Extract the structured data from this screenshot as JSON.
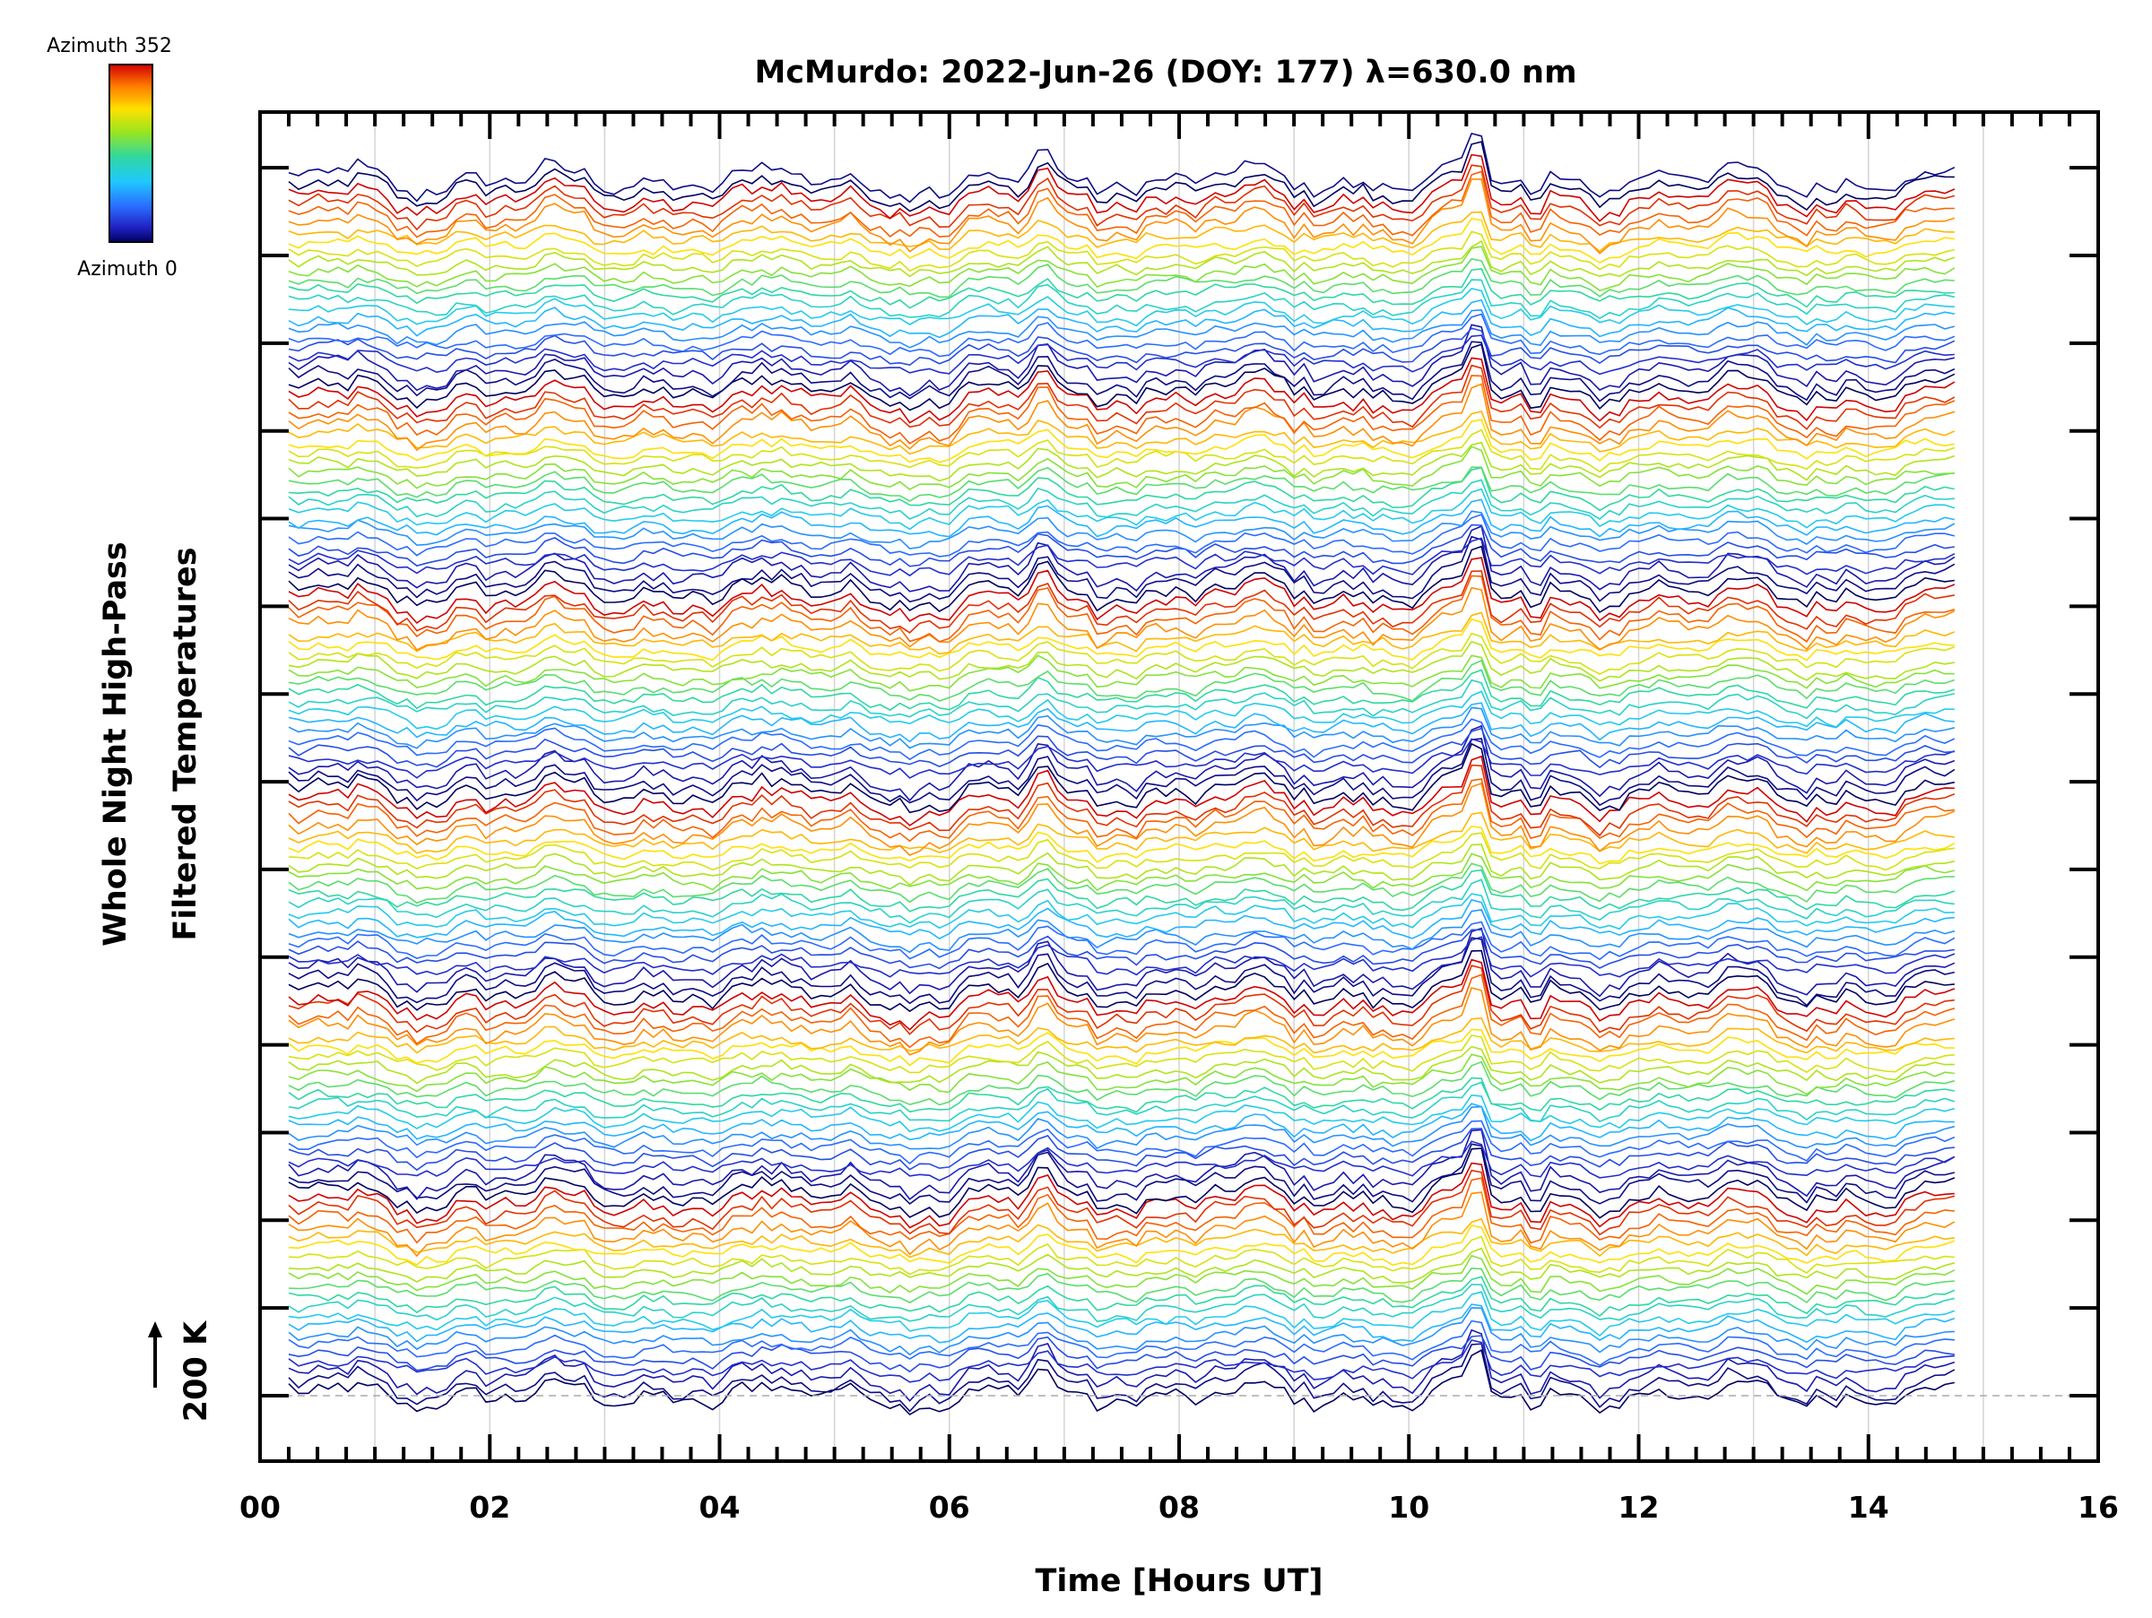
{
  "chart_data": {
    "type": "line",
    "title": "McMurdo: 2022-Jun-26 (DOY: 177) λ=630.0 nm",
    "xlabel": "Time [Hours UT]",
    "ylabel_line1": "Whole Night High-Pass",
    "ylabel_line2": "Filtered Temperatures",
    "xlim": [
      0,
      16
    ],
    "x_ticks": [
      "00",
      "02",
      "04",
      "06",
      "08",
      "10",
      "12",
      "14",
      "16"
    ],
    "scale_marker": "200 K",
    "colorbar": {
      "top_label": "Azimuth 352",
      "bottom_label": "Azimuth 0",
      "colormap": [
        "#d00000",
        "#ff7a00",
        "#ffe000",
        "#9be51f",
        "#2fd8a0",
        "#20c8ff",
        "#2a6cff",
        "#2020c0",
        "#000060"
      ]
    },
    "time_start_hours": 0.25,
    "time_end_hours": 14.75,
    "num_traces": 128,
    "traces_per_group": 21,
    "grid": true,
    "vertical_gridlines_hours": [
      1,
      2,
      3,
      4,
      5,
      6,
      7,
      8,
      9,
      10,
      11,
      12,
      13,
      14,
      15
    ]
  }
}
